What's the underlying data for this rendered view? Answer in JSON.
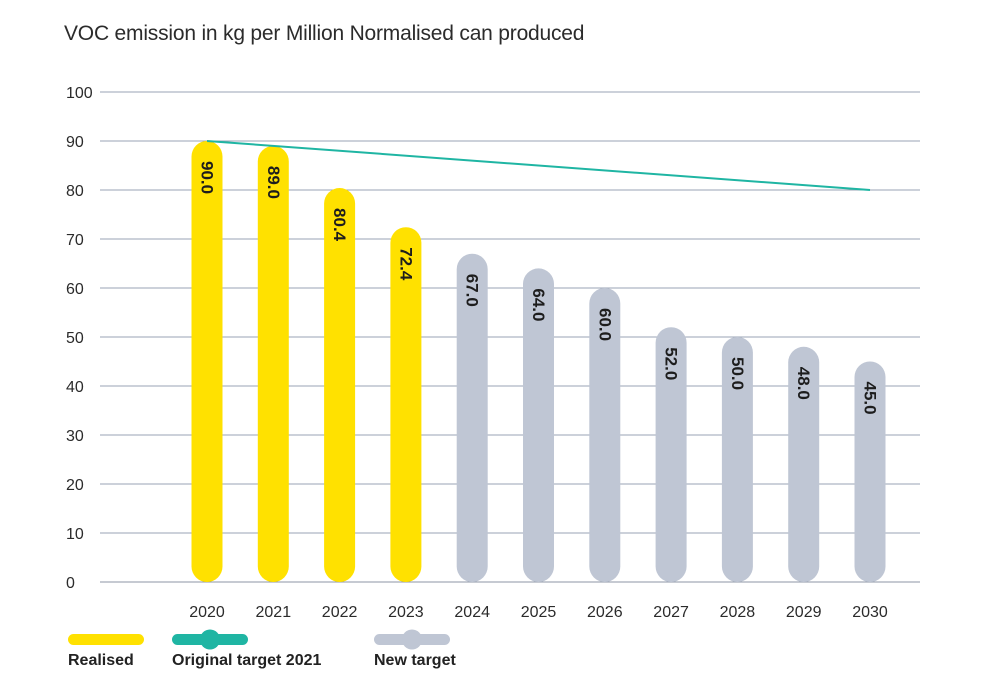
{
  "chart_data": {
    "type": "bar",
    "title": "VOC emission in kg per Million Normalised can produced",
    "xlabel": "",
    "ylabel": "",
    "ylim": [
      0,
      100
    ],
    "yticks": [
      0,
      10,
      20,
      30,
      40,
      50,
      60,
      70,
      80,
      90,
      100
    ],
    "grid": true,
    "legend_position": "bottom-left",
    "categories": [
      "2020",
      "2021",
      "2022",
      "2023",
      "2024",
      "2025",
      "2026",
      "2027",
      "2028",
      "2029",
      "2030"
    ],
    "series": [
      {
        "name": "Realised",
        "color": "#FFE100",
        "values": [
          90.0,
          89.0,
          80.4,
          72.4,
          null,
          null,
          null,
          null,
          null,
          null,
          null
        ],
        "labels": [
          "90.0",
          "89.0",
          "80.4",
          "72.4",
          "",
          "",
          "",
          "",
          "",
          "",
          ""
        ]
      },
      {
        "name": "New target",
        "color": "#BFC6D4",
        "values": [
          null,
          null,
          null,
          null,
          67.0,
          64.0,
          60.0,
          52.0,
          50.0,
          48.0,
          45.0
        ],
        "labels": [
          "",
          "",
          "",
          "",
          "67.0",
          "64.0",
          "60.0",
          "52.0",
          "50.0",
          "48.0",
          "45.0"
        ]
      }
    ],
    "lines": [
      {
        "name": "Original target 2021",
        "color": "#1FB5A3",
        "points": [
          {
            "x": "2020",
            "y": 90
          },
          {
            "x": "2030",
            "y": 80
          }
        ]
      }
    ]
  },
  "legend": [
    {
      "label": "Realised",
      "color": "#FFE100",
      "kind": "bar"
    },
    {
      "label": "Original target 2021",
      "color": "#1FB5A3",
      "kind": "line"
    },
    {
      "label": "New target",
      "color": "#BFC6D4",
      "kind": "bar-dot"
    }
  ]
}
